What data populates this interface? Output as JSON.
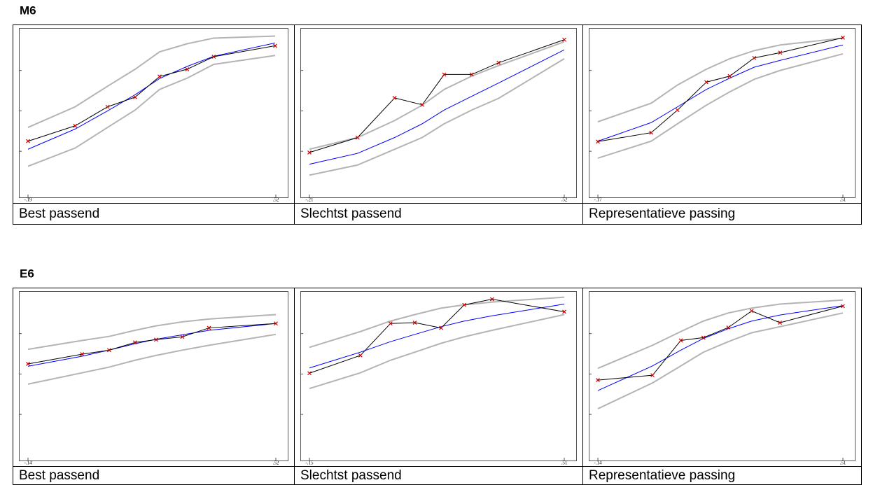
{
  "sections": [
    {
      "title": "M6",
      "panels": [
        {
          "caption": "Best passend",
          "chart": {
            "type": "line",
            "xlim": [
              -0.19,
              0.52
            ],
            "xticks": [
              {
                "value": -0.19,
                "label": "-.19"
              },
              {
                "value": 0.52,
                "label": ".52"
              }
            ],
            "ylim": [
              -0.14,
              4.05
            ],
            "yticks": [
              1,
              2,
              3
            ],
            "x": [
              -0.19,
              -0.055,
              0.038,
              0.117,
              0.187,
              0.266,
              0.342,
              0.518
            ],
            "observed": [
              1.25,
              1.63,
              2.1,
              2.34,
              2.85,
              3.03,
              3.34,
              3.61
            ],
            "expected": [
              1.05,
              1.55,
              2.0,
              2.4,
              2.8,
              3.1,
              3.35,
              3.68
            ],
            "lower": [
              0.63,
              1.08,
              1.59,
              2.02,
              2.53,
              2.81,
              3.15,
              3.37
            ],
            "upper": [
              1.59,
              2.1,
              2.61,
              3.03,
              3.46,
              3.66,
              3.8,
              3.85
            ]
          }
        },
        {
          "caption": "Slechtst passend",
          "chart": {
            "type": "line",
            "xlim": [
              -0.21,
              0.52
            ],
            "xticks": [
              {
                "value": -0.21,
                "label": "-.21"
              },
              {
                "value": 0.52,
                "label": ".52"
              }
            ],
            "ylim": [
              -0.14,
              4.05
            ],
            "yticks": [
              1,
              2,
              3
            ],
            "x": [
              -0.21,
              -0.072,
              0.034,
              0.113,
              0.176,
              0.255,
              0.332,
              0.52
            ],
            "observed": [
              0.97,
              1.34,
              2.32,
              2.15,
              2.9,
              2.9,
              3.19,
              3.76
            ],
            "expected": [
              0.68,
              0.95,
              1.34,
              1.68,
              2.02,
              2.36,
              2.69,
              3.51
            ],
            "lower": [
              0.41,
              0.66,
              1.05,
              1.34,
              1.68,
              2.02,
              2.31,
              3.29
            ],
            "upper": [
              1.05,
              1.34,
              1.76,
              2.14,
              2.53,
              2.86,
              3.12,
              3.71
            ]
          }
        },
        {
          "caption": "Representatieve passing",
          "chart": {
            "type": "line",
            "xlim": [
              -0.17,
              0.51
            ],
            "xticks": [
              {
                "value": -0.17,
                "label": "-.17"
              },
              {
                "value": 0.51,
                "label": ".51"
              }
            ],
            "ylim": [
              -0.14,
              4.05
            ],
            "yticks": [
              1,
              2,
              3
            ],
            "x": [
              -0.17,
              -0.022,
              0.051,
              0.131,
              0.196,
              0.264,
              0.336,
              0.51
            ],
            "observed": [
              1.24,
              1.46,
              2.02,
              2.71,
              2.86,
              3.31,
              3.44,
              3.81
            ],
            "expected": [
              1.25,
              1.71,
              2.1,
              2.53,
              2.81,
              3.08,
              3.25,
              3.63
            ],
            "lower": [
              0.83,
              1.25,
              1.68,
              2.14,
              2.47,
              2.78,
              3.0,
              3.41
            ],
            "upper": [
              1.73,
              2.19,
              2.64,
              3.03,
              3.29,
              3.49,
              3.63,
              3.8
            ]
          }
        }
      ]
    },
    {
      "title": "E6",
      "panels": [
        {
          "caption": "Best passend",
          "chart": {
            "type": "line",
            "xlim": [
              -0.14,
              0.52
            ],
            "xticks": [
              {
                "value": -0.14,
                "label": "-.14"
              },
              {
                "value": 0.52,
                "label": ".52"
              }
            ],
            "ylim": [
              -0.14,
              4.05
            ],
            "yticks": [
              1,
              2,
              3
            ],
            "x": [
              -0.14,
              0.004,
              0.076,
              0.145,
              0.201,
              0.271,
              0.342,
              0.52
            ],
            "observed": [
              2.25,
              2.49,
              2.59,
              2.78,
              2.85,
              2.92,
              3.14,
              3.25
            ],
            "expected": [
              2.19,
              2.44,
              2.59,
              2.75,
              2.86,
              2.97,
              3.08,
              3.25
            ],
            "lower": [
              1.75,
              2.03,
              2.17,
              2.34,
              2.46,
              2.59,
              2.71,
              2.98
            ],
            "upper": [
              2.61,
              2.83,
              2.93,
              3.08,
              3.19,
              3.29,
              3.36,
              3.47
            ]
          }
        },
        {
          "caption": "Slechtst passend",
          "chart": {
            "type": "line",
            "xlim": [
              -0.15,
              0.51
            ],
            "xticks": [
              {
                "value": -0.15,
                "label": "-.15"
              },
              {
                "value": 0.51,
                "label": ".51"
              }
            ],
            "ylim": [
              -0.14,
              4.05
            ],
            "yticks": [
              1,
              2,
              3
            ],
            "x": [
              -0.15,
              -0.018,
              0.06,
              0.123,
              0.191,
              0.251,
              0.323,
              0.51
            ],
            "observed": [
              2.02,
              2.46,
              3.25,
              3.27,
              3.14,
              3.71,
              3.85,
              3.54
            ],
            "expected": [
              2.15,
              2.54,
              2.8,
              2.98,
              3.17,
              3.31,
              3.44,
              3.73
            ],
            "lower": [
              1.64,
              2.03,
              2.34,
              2.54,
              2.76,
              2.92,
              3.08,
              3.47
            ],
            "upper": [
              2.66,
              3.05,
              3.31,
              3.47,
              3.63,
              3.71,
              3.78,
              3.9
            ]
          }
        },
        {
          "caption": "Representatieve passing",
          "chart": {
            "type": "line",
            "xlim": [
              -0.14,
              0.51
            ],
            "xticks": [
              {
                "value": -0.14,
                "label": "-.14"
              },
              {
                "value": 0.51,
                "label": ".51"
              }
            ],
            "ylim": [
              -0.14,
              4.05
            ],
            "yticks": [
              1,
              2,
              3
            ],
            "x": [
              -0.14,
              0.005,
              0.08,
              0.14,
              0.206,
              0.268,
              0.343,
              0.51
            ],
            "observed": [
              1.85,
              1.97,
              2.83,
              2.9,
              3.15,
              3.56,
              3.27,
              3.68
            ],
            "expected": [
              1.59,
              2.2,
              2.59,
              2.88,
              3.12,
              3.31,
              3.46,
              3.69
            ],
            "lower": [
              1.14,
              1.78,
              2.2,
              2.54,
              2.8,
              3.02,
              3.17,
              3.51
            ],
            "upper": [
              2.14,
              2.71,
              3.05,
              3.31,
              3.51,
              3.63,
              3.73,
              3.83
            ]
          }
        }
      ]
    }
  ]
}
